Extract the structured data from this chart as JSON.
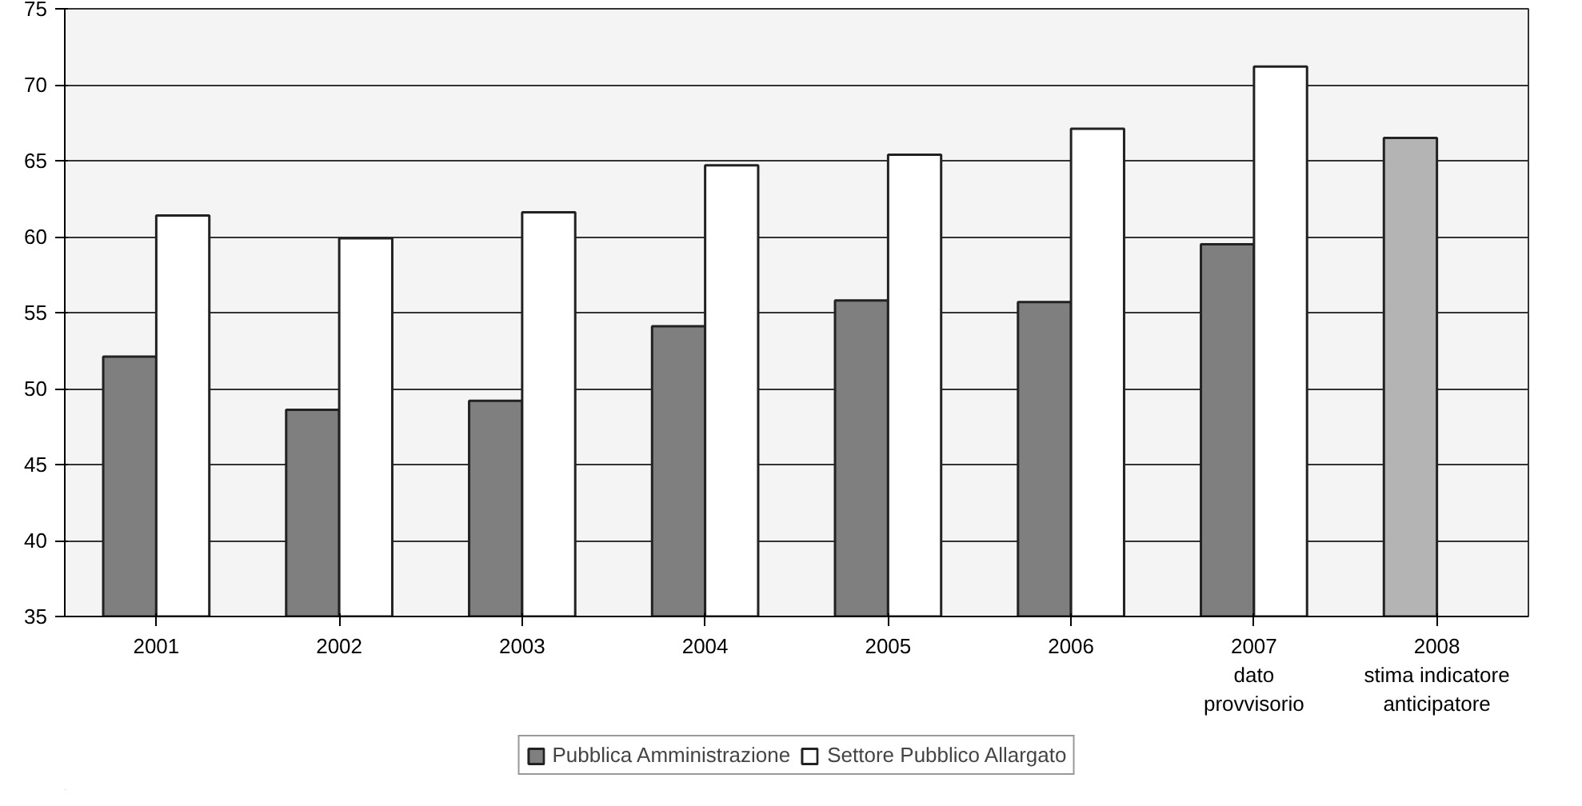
{
  "chart_data": {
    "type": "bar",
    "categories": [
      "2001",
      "2002",
      "2003",
      "2004",
      "2005",
      "2006",
      "2007\ndato\nprovvisorio",
      "2008\nstima indicatore\nanticipatore"
    ],
    "series": [
      {
        "name": "Pubblica Amministrazione",
        "color": "#7f7f7f",
        "colors": [
          "#7f7f7f",
          "#7f7f7f",
          "#7f7f7f",
          "#7f7f7f",
          "#7f7f7f",
          "#7f7f7f",
          "#7f7f7f",
          "#b4b4b4"
        ],
        "values": [
          52.1,
          48.6,
          49.2,
          54.1,
          55.8,
          55.7,
          59.5,
          66.5
        ]
      },
      {
        "name": "Settore Pubblico Allargato",
        "color": "#ffffff",
        "values": [
          61.4,
          59.9,
          61.6,
          64.7,
          65.4,
          67.1,
          71.2,
          null
        ]
      }
    ],
    "ylim": [
      35,
      75
    ],
    "yticks": [
      35,
      40,
      45,
      50,
      55,
      60,
      65,
      70,
      75
    ],
    "grid": "y",
    "legend": "bottom"
  }
}
